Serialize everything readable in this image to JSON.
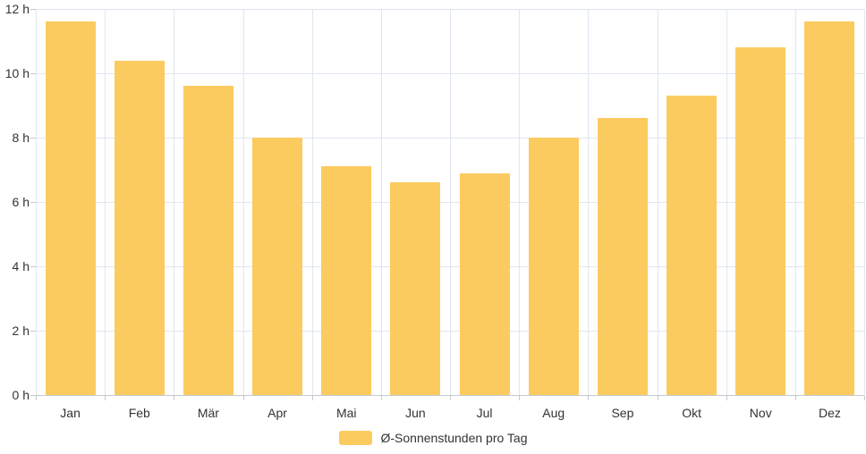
{
  "chart_data": {
    "type": "bar",
    "title": "",
    "categories": [
      "Jan",
      "Feb",
      "Mär",
      "Apr",
      "Mai",
      "Jun",
      "Jul",
      "Aug",
      "Sep",
      "Okt",
      "Nov",
      "Dez"
    ],
    "values": [
      11.6,
      10.4,
      9.6,
      8.0,
      7.1,
      6.6,
      6.9,
      8.0,
      8.6,
      9.3,
      10.8,
      11.6
    ],
    "unit": "h",
    "legend": "Ø-Sonnenstunden pro Tag",
    "xlabel": "",
    "ylabel": "",
    "y_tick_labels": [
      "12 h",
      "10 h",
      "8 h",
      "6 h",
      "4 h",
      "2 h",
      "0 h"
    ],
    "ylim": [
      0,
      12
    ],
    "y_tick_step": 2,
    "grid": true,
    "legend_position": "bottom",
    "colors": {
      "bar": "#FCCB60",
      "grid": "#E0E6F1",
      "axis": "#C4C9D0",
      "text": "#333333",
      "background": "#FFFFFF"
    }
  }
}
